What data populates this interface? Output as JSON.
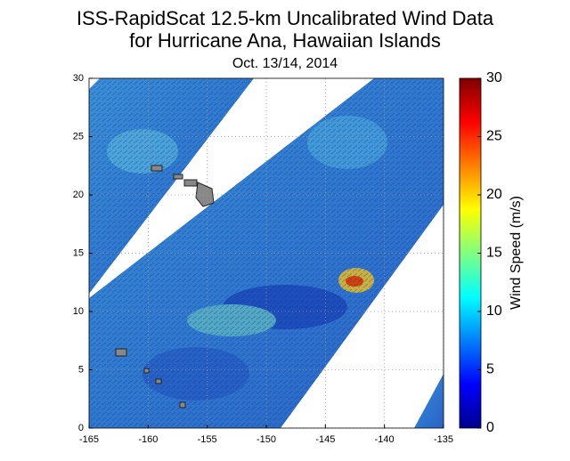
{
  "chart_data": {
    "type": "map",
    "title": "ISS-RapidScat 12.5-km Uncalibrated Wind Data",
    "subtitle": "for Hurricane Ana, Hawaiian Islands",
    "date": "Oct. 13/14, 2014",
    "xlim": [
      -165,
      -135
    ],
    "xticks": [
      -165,
      -160,
      -155,
      -150,
      -145,
      -140,
      -135
    ],
    "ylim": [
      0,
      30
    ],
    "yticks": [
      0,
      5,
      10,
      15,
      20,
      25,
      30
    ],
    "grid": true,
    "colorbar": {
      "label": "Wind Speed (m/s)",
      "lim": [
        0,
        30
      ],
      "ticks": [
        0,
        5,
        10,
        15,
        20,
        25,
        30
      ]
    }
  }
}
